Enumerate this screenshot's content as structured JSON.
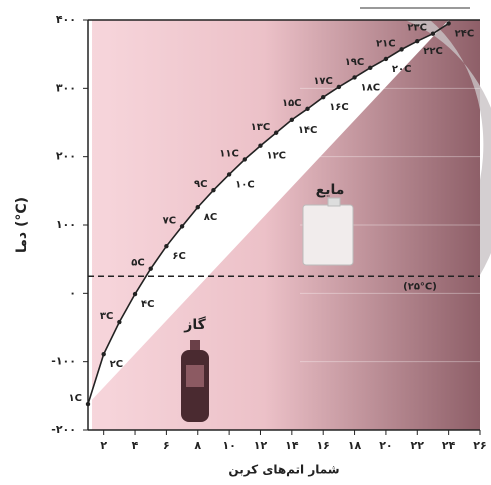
{
  "chart_data": {
    "type": "line",
    "y_axis_label": "دما (°C)",
    "x_axis_label": "شمار اتم‌های کربن",
    "x": [
      1,
      2,
      3,
      4,
      5,
      6,
      7,
      8,
      9,
      10,
      11,
      12,
      13,
      14,
      15,
      16,
      17,
      18,
      19,
      20,
      21,
      22,
      23,
      24
    ],
    "series": [
      {
        "color": "#222222",
        "values": [
          -162,
          -89,
          -42,
          -1,
          36,
          69,
          98,
          126,
          151,
          174,
          196,
          216,
          235,
          254,
          270,
          287,
          302,
          316,
          330,
          343,
          357,
          369,
          380,
          395
        ],
        "point_labels": [
          "۱C",
          "۲C",
          "۳C",
          "۴C",
          "۵C",
          "۶C",
          "۷C",
          "۸C",
          "۹C",
          "۱۰C",
          "۱۱C",
          "۱۲C",
          "۱۳C",
          "۱۴C",
          "۱۵C",
          "۱۶C",
          "۱۷C",
          "۱۸C",
          "۱۹C",
          "۲۰C",
          "۲۱C",
          "۲۲C",
          "۲۳C",
          "۲۴C"
        ]
      }
    ],
    "xlim": [
      1,
      26
    ],
    "xticks": [
      {
        "value": 2,
        "label": "۲"
      },
      {
        "value": 4,
        "label": "۴"
      },
      {
        "value": 6,
        "label": "۶"
      },
      {
        "value": 8,
        "label": "۸"
      },
      {
        "value": 10,
        "label": "۱۰"
      },
      {
        "value": 12,
        "label": "۱۲"
      },
      {
        "value": 14,
        "label": "۱۴"
      },
      {
        "value": 16,
        "label": "۱۶"
      },
      {
        "value": 18,
        "label": "۱۸"
      },
      {
        "value": 20,
        "label": "۲۰"
      },
      {
        "value": 22,
        "label": "۲۲"
      },
      {
        "value": 24,
        "label": "۲۴"
      },
      {
        "value": 26,
        "label": "۲۶"
      }
    ],
    "ylim": [
      -200,
      400
    ],
    "yticks": [
      {
        "value": -200,
        "label": "-۲۰۰"
      },
      {
        "value": -100,
        "label": "-۱۰۰"
      },
      {
        "value": 0,
        "label": "۰"
      },
      {
        "value": 100,
        "label": "۱۰۰"
      },
      {
        "value": 200,
        "label": "۲۰۰"
      },
      {
        "value": 300,
        "label": "۳۰۰"
      },
      {
        "value": 400,
        "label": "۴۰۰"
      }
    ],
    "reference_line": {
      "value": 25,
      "label": "(۲۵°C)"
    },
    "region_labels": [
      "گاز",
      "مایع"
    ]
  }
}
